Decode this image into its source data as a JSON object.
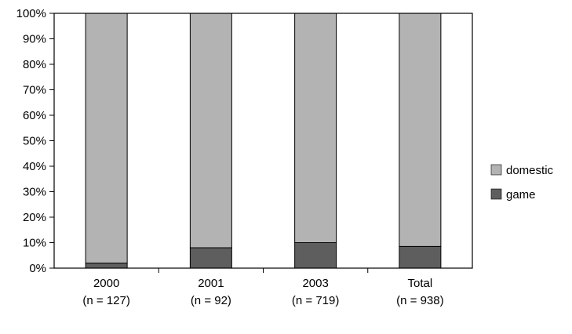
{
  "chart_data": {
    "type": "bar",
    "stacked": true,
    "percent": true,
    "categories": [
      "2000",
      "2001",
      "2003",
      "Total"
    ],
    "category_sublabels": [
      "(n = 127)",
      "(n = 92)",
      "(n = 719)",
      "(n = 938)"
    ],
    "series": [
      {
        "name": "game",
        "values": [
          2,
          8,
          10,
          8.5
        ],
        "color": "#5e5e5e"
      },
      {
        "name": "domestic",
        "values": [
          98,
          92,
          90,
          91.5
        ],
        "color": "#b3b3b3"
      }
    ],
    "legend": {
      "position": "right",
      "items": [
        "domestic",
        "game"
      ]
    },
    "ylim": [
      0,
      100
    ],
    "yticks": [
      "0%",
      "10%",
      "20%",
      "30%",
      "40%",
      "50%",
      "60%",
      "70%",
      "80%",
      "90%",
      "100%"
    ],
    "grid": false,
    "title": "",
    "xlabel": "",
    "ylabel": ""
  }
}
